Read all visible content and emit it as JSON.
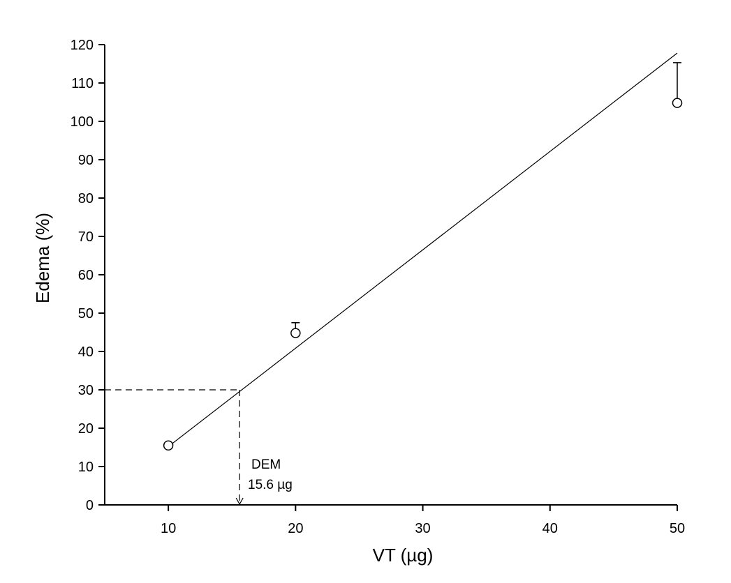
{
  "chart_data": {
    "type": "scatter",
    "xlabel": "VT (µg)",
    "ylabel": "Edema (%)",
    "xlim": [
      5,
      50
    ],
    "ylim": [
      0,
      120
    ],
    "x_ticks": [
      10,
      20,
      30,
      40,
      50
    ],
    "y_ticks": [
      0,
      10,
      20,
      30,
      40,
      50,
      60,
      70,
      80,
      90,
      100,
      110,
      120
    ],
    "grid": false,
    "series": [
      {
        "points": [
          {
            "x": 10,
            "y": 15.5,
            "err": 0.5
          },
          {
            "x": 20,
            "y": 44.8,
            "err": 2.7
          },
          {
            "x": 50,
            "y": 104.8,
            "err": 10.5
          }
        ]
      }
    ],
    "fit_line": {
      "x_start": 10,
      "y_start": 15.2,
      "x_end": 50,
      "y_end": 117.8
    },
    "annotation": {
      "line1": "DEM",
      "line2": "15.6 µg",
      "x": 15.6,
      "y": 30
    },
    "colors": {
      "line": "#000000",
      "marker_fill": "#ffffff",
      "background": "#ffffff"
    }
  }
}
